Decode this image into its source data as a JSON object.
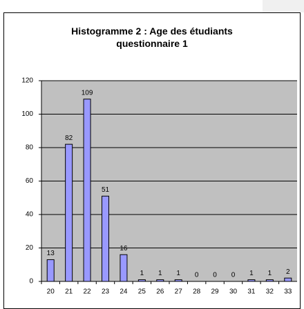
{
  "chart_data": {
    "type": "bar",
    "title": "Histogramme 2 : Age des étudiants questionnaire 1",
    "categories": [
      "20",
      "21",
      "22",
      "23",
      "24",
      "25",
      "26",
      "27",
      "28",
      "29",
      "30",
      "31",
      "32",
      "33"
    ],
    "values": [
      13,
      82,
      109,
      51,
      16,
      1,
      1,
      1,
      0,
      0,
      0,
      1,
      1,
      2
    ],
    "color": "#9999ff",
    "ylim": [
      0,
      120
    ],
    "yticks": [
      0,
      20,
      40,
      60,
      80,
      100,
      120
    ],
    "grid": true
  }
}
